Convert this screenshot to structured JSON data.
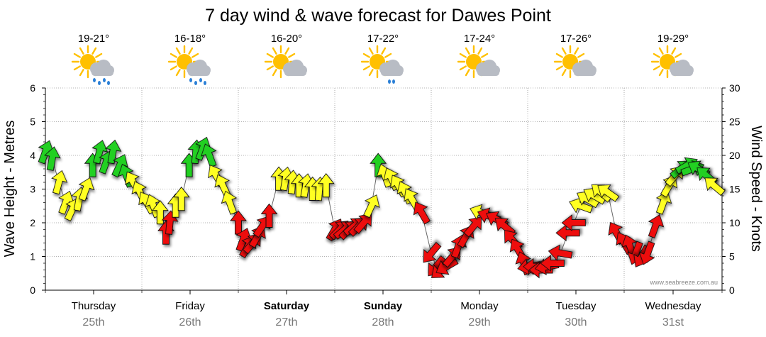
{
  "chart_data": {
    "type": "line",
    "title": "7 day wind & wave forecast for Dawes Point",
    "ylabel": "Wave Height - Metres",
    "y2label": "Wind Speed - Knots",
    "ylim": [
      0,
      6
    ],
    "y2lim": [
      0,
      30
    ],
    "yticks": [
      "0",
      "1",
      "2",
      "3",
      "4",
      "5",
      "6"
    ],
    "y2ticks": [
      "0",
      "5",
      "10",
      "15",
      "20",
      "25",
      "30"
    ],
    "grid": true,
    "days": [
      {
        "name": "Thursday",
        "date": "25th",
        "temp": "19-21°",
        "icon": "sun-cloud-rain-icon",
        "bold": false,
        "rain": true
      },
      {
        "name": "Friday",
        "date": "26th",
        "temp": "16-18°",
        "icon": "sun-cloud-rain-icon",
        "bold": false,
        "rain": true
      },
      {
        "name": "Saturday",
        "date": "27th",
        "temp": "16-20°",
        "icon": "sun-cloud-icon",
        "bold": true,
        "rain": false
      },
      {
        "name": "Sunday",
        "date": "28th",
        "temp": "17-22°",
        "icon": "sun-cloud-light-rain-icon",
        "bold": true,
        "rain": true
      },
      {
        "name": "Monday",
        "date": "29th",
        "temp": "17-24°",
        "icon": "sun-cloud-icon",
        "bold": false,
        "rain": false
      },
      {
        "name": "Tuesday",
        "date": "30th",
        "temp": "17-26°",
        "icon": "sun-cloud-icon",
        "bold": false,
        "rain": false
      },
      {
        "name": "Wednesday",
        "date": "31st",
        "temp": "19-29°",
        "icon": "sun-cloud-icon",
        "bold": false,
        "rain": false
      }
    ],
    "series": [
      {
        "name": "Wind",
        "unit": "knots",
        "points": [
          {
            "t": 0.0,
            "knots": 20.5,
            "dir": 20,
            "color": "green"
          },
          {
            "t": 0.07,
            "knots": 19.5,
            "dir": 10,
            "color": "green"
          },
          {
            "t": 0.14,
            "knots": 16.0,
            "dir": 15,
            "color": "yellow"
          },
          {
            "t": 0.21,
            "knots": 13.0,
            "dir": 20,
            "color": "yellow"
          },
          {
            "t": 0.28,
            "knots": 12.0,
            "dir": 25,
            "color": "yellow"
          },
          {
            "t": 0.35,
            "knots": 13.5,
            "dir": 10,
            "color": "yellow"
          },
          {
            "t": 0.42,
            "knots": 15.0,
            "dir": 20,
            "color": "yellow"
          },
          {
            "t": 0.49,
            "knots": 18.5,
            "dir": 0,
            "color": "green"
          },
          {
            "t": 0.56,
            "knots": 20.5,
            "dir": 15,
            "color": "green"
          },
          {
            "t": 0.63,
            "knots": 19.0,
            "dir": 20,
            "color": "green"
          },
          {
            "t": 0.7,
            "knots": 20.5,
            "dir": 10,
            "color": "green"
          },
          {
            "t": 0.77,
            "knots": 18.5,
            "dir": 25,
            "color": "green"
          },
          {
            "t": 0.84,
            "knots": 17.0,
            "dir": 340,
            "color": "green"
          },
          {
            "t": 0.91,
            "knots": 16.0,
            "dir": 330,
            "color": "yellow"
          },
          {
            "t": 0.98,
            "knots": 14.5,
            "dir": 335,
            "color": "yellow"
          },
          {
            "t": 1.05,
            "knots": 13.0,
            "dir": 330,
            "color": "yellow"
          },
          {
            "t": 1.12,
            "knots": 12.5,
            "dir": 340,
            "color": "yellow"
          },
          {
            "t": 1.19,
            "knots": 11.5,
            "dir": 0,
            "color": "yellow"
          },
          {
            "t": 1.25,
            "knots": 8.5,
            "dir": 0,
            "color": "red"
          },
          {
            "t": 1.29,
            "knots": 10.0,
            "dir": 5,
            "color": "red"
          },
          {
            "t": 1.35,
            "knots": 12.5,
            "dir": 0,
            "color": "yellow"
          },
          {
            "t": 1.41,
            "knots": 13.5,
            "dir": 0,
            "color": "yellow"
          },
          {
            "t": 1.49,
            "knots": 18.5,
            "dir": 0,
            "color": "green"
          },
          {
            "t": 1.56,
            "knots": 20.5,
            "dir": 5,
            "color": "green"
          },
          {
            "t": 1.63,
            "knots": 21.0,
            "dir": 20,
            "color": "green"
          },
          {
            "t": 1.7,
            "knots": 20.0,
            "dir": 340,
            "color": "green"
          },
          {
            "t": 1.77,
            "knots": 17.0,
            "dir": 330,
            "color": "yellow"
          },
          {
            "t": 1.84,
            "knots": 15.5,
            "dir": 335,
            "color": "yellow"
          },
          {
            "t": 1.91,
            "knots": 13.0,
            "dir": 340,
            "color": "yellow"
          },
          {
            "t": 2.0,
            "knots": 10.0,
            "dir": 0,
            "color": "red"
          },
          {
            "t": 2.05,
            "knots": 7.5,
            "dir": 20,
            "color": "red"
          },
          {
            "t": 2.1,
            "knots": 6.5,
            "dir": 30,
            "color": "red"
          },
          {
            "t": 2.15,
            "knots": 7.0,
            "dir": 40,
            "color": "red"
          },
          {
            "t": 2.2,
            "knots": 8.0,
            "dir": 30,
            "color": "red"
          },
          {
            "t": 2.25,
            "knots": 9.5,
            "dir": 35,
            "color": "red"
          },
          {
            "t": 2.32,
            "knots": 11.0,
            "dir": 0,
            "color": "red"
          },
          {
            "t": 2.42,
            "knots": 16.5,
            "dir": 0,
            "color": "yellow"
          },
          {
            "t": 2.49,
            "knots": 16.5,
            "dir": 10,
            "color": "yellow"
          },
          {
            "t": 2.56,
            "knots": 16.0,
            "dir": 5,
            "color": "yellow"
          },
          {
            "t": 2.63,
            "knots": 15.5,
            "dir": 0,
            "color": "yellow"
          },
          {
            "t": 2.7,
            "knots": 15.5,
            "dir": 10,
            "color": "yellow"
          },
          {
            "t": 2.77,
            "knots": 15.0,
            "dir": 0,
            "color": "yellow"
          },
          {
            "t": 2.84,
            "knots": 15.0,
            "dir": 5,
            "color": "yellow"
          },
          {
            "t": 2.91,
            "knots": 15.5,
            "dir": 0,
            "color": "yellow"
          },
          {
            "t": 3.0,
            "knots": 9.0,
            "dir": 30,
            "color": "red"
          },
          {
            "t": 3.05,
            "knots": 9.0,
            "dir": 45,
            "color": "red"
          },
          {
            "t": 3.1,
            "knots": 9.0,
            "dir": 50,
            "color": "red"
          },
          {
            "t": 3.15,
            "knots": 9.0,
            "dir": 45,
            "color": "red"
          },
          {
            "t": 3.2,
            "knots": 9.5,
            "dir": 50,
            "color": "red"
          },
          {
            "t": 3.25,
            "knots": 9.5,
            "dir": 45,
            "color": "red"
          },
          {
            "t": 3.3,
            "knots": 10.0,
            "dir": 40,
            "color": "red"
          },
          {
            "t": 3.38,
            "knots": 12.5,
            "dir": 25,
            "color": "yellow"
          },
          {
            "t": 3.45,
            "knots": 18.5,
            "dir": 0,
            "color": "green"
          },
          {
            "t": 3.52,
            "knots": 17.0,
            "dir": 340,
            "color": "yellow"
          },
          {
            "t": 3.59,
            "knots": 16.5,
            "dir": 335,
            "color": "yellow"
          },
          {
            "t": 3.66,
            "knots": 15.5,
            "dir": 330,
            "color": "yellow"
          },
          {
            "t": 3.73,
            "knots": 14.5,
            "dir": 335,
            "color": "yellow"
          },
          {
            "t": 3.8,
            "knots": 13.5,
            "dir": 330,
            "color": "yellow"
          },
          {
            "t": 3.9,
            "knots": 11.5,
            "dir": 330,
            "color": "red"
          },
          {
            "t": 4.0,
            "knots": 5.5,
            "dir": 220,
            "color": "red"
          },
          {
            "t": 4.05,
            "knots": 3.5,
            "dir": 220,
            "color": "red"
          },
          {
            "t": 4.1,
            "knots": 3.0,
            "dir": 230,
            "color": "red"
          },
          {
            "t": 4.16,
            "knots": 3.5,
            "dir": 240,
            "color": "red"
          },
          {
            "t": 4.22,
            "knots": 5.0,
            "dir": 40,
            "color": "red"
          },
          {
            "t": 4.28,
            "knots": 6.5,
            "dir": 20,
            "color": "red"
          },
          {
            "t": 4.36,
            "knots": 8.0,
            "dir": 30,
            "color": "red"
          },
          {
            "t": 4.44,
            "knots": 9.5,
            "dir": 40,
            "color": "red"
          },
          {
            "t": 4.52,
            "knots": 11.5,
            "dir": 290,
            "color": "yellow"
          },
          {
            "t": 4.6,
            "knots": 11.0,
            "dir": 290,
            "color": "red"
          },
          {
            "t": 4.68,
            "knots": 10.5,
            "dir": 300,
            "color": "red"
          },
          {
            "t": 4.76,
            "knots": 9.5,
            "dir": 310,
            "color": "red"
          },
          {
            "t": 4.84,
            "knots": 7.5,
            "dir": 320,
            "color": "red"
          },
          {
            "t": 4.9,
            "knots": 6.0,
            "dir": 330,
            "color": "red"
          },
          {
            "t": 4.96,
            "knots": 4.0,
            "dir": 340,
            "color": "red"
          },
          {
            "t": 5.02,
            "knots": 3.5,
            "dir": 260,
            "color": "red"
          },
          {
            "t": 5.08,
            "knots": 3.5,
            "dir": 270,
            "color": "red"
          },
          {
            "t": 5.14,
            "knots": 3.0,
            "dir": 270,
            "color": "red"
          },
          {
            "t": 5.2,
            "knots": 3.5,
            "dir": 260,
            "color": "red"
          },
          {
            "t": 5.26,
            "knots": 4.0,
            "dir": 270,
            "color": "red"
          },
          {
            "t": 5.34,
            "knots": 5.5,
            "dir": 280,
            "color": "red"
          },
          {
            "t": 5.42,
            "knots": 8.5,
            "dir": 270,
            "color": "red"
          },
          {
            "t": 5.48,
            "knots": 10.0,
            "dir": 270,
            "color": "red"
          },
          {
            "t": 5.55,
            "knots": 12.5,
            "dir": 290,
            "color": "yellow"
          },
          {
            "t": 5.62,
            "knots": 13.5,
            "dir": 300,
            "color": "yellow"
          },
          {
            "t": 5.69,
            "knots": 14.0,
            "dir": 300,
            "color": "yellow"
          },
          {
            "t": 5.76,
            "knots": 14.5,
            "dir": 310,
            "color": "yellow"
          },
          {
            "t": 5.83,
            "knots": 14.5,
            "dir": 305,
            "color": "yellow"
          },
          {
            "t": 5.92,
            "knots": 8.5,
            "dir": 330,
            "color": "red"
          },
          {
            "t": 6.0,
            "knots": 7.0,
            "dir": 330,
            "color": "red"
          },
          {
            "t": 6.06,
            "knots": 6.5,
            "dir": 340,
            "color": "red"
          },
          {
            "t": 6.12,
            "knots": 5.5,
            "dir": 200,
            "color": "red"
          },
          {
            "t": 6.18,
            "knots": 5.0,
            "dir": 210,
            "color": "red"
          },
          {
            "t": 6.24,
            "knots": 5.5,
            "dir": 200,
            "color": "red"
          },
          {
            "t": 6.32,
            "knots": 9.5,
            "dir": 20,
            "color": "red"
          },
          {
            "t": 6.4,
            "knots": 13.0,
            "dir": 20,
            "color": "yellow"
          },
          {
            "t": 6.46,
            "knots": 15.5,
            "dir": 30,
            "color": "yellow"
          },
          {
            "t": 6.52,
            "knots": 17.0,
            "dir": 40,
            "color": "yellow"
          },
          {
            "t": 6.58,
            "knots": 18.0,
            "dir": 50,
            "color": "green"
          },
          {
            "t": 6.64,
            "knots": 18.5,
            "dir": 60,
            "color": "green"
          },
          {
            "t": 6.7,
            "knots": 18.0,
            "dir": 70,
            "color": "green"
          },
          {
            "t": 6.76,
            "knots": 18.0,
            "dir": 300,
            "color": "green"
          },
          {
            "t": 6.84,
            "knots": 17.0,
            "dir": 310,
            "color": "green"
          },
          {
            "t": 6.92,
            "knots": 15.5,
            "dir": 310,
            "color": "yellow"
          }
        ]
      }
    ]
  },
  "credit": "www.seabreeze.com.au",
  "colors": {
    "green": "#22d022",
    "yellow": "#ffff22",
    "red": "#ee1111",
    "grid": "#9a9a9a",
    "sun": "#ffc000",
    "cloud": "#b8bcc4",
    "rain": "#2a7fd6"
  }
}
